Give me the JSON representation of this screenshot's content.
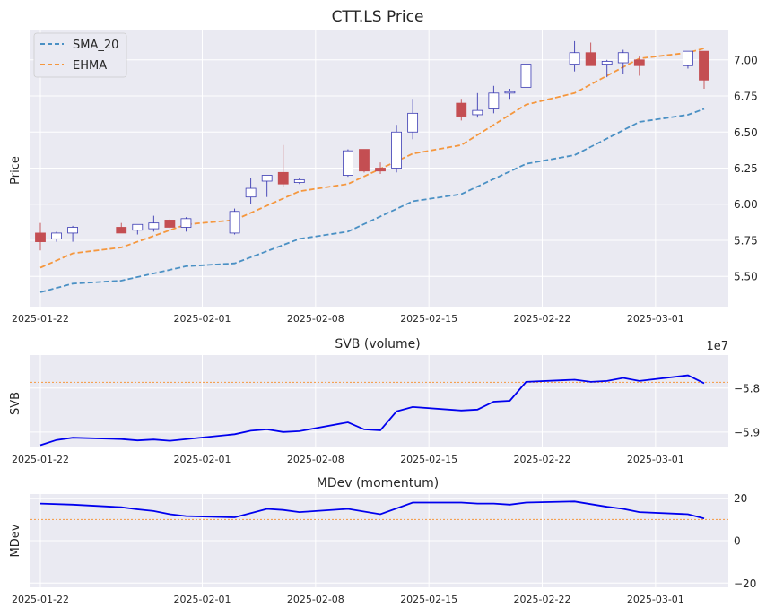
{
  "chart_data": [
    {
      "type": "candlestick",
      "title": "CTT.LS Price",
      "ylabel": "Price",
      "ylim": [
        5.29,
        7.21
      ],
      "yticks": [
        5.5,
        5.75,
        6.0,
        6.25,
        6.5,
        6.75,
        7.0
      ],
      "ytick_labels": [
        "5.50",
        "5.75",
        "6.00",
        "6.25",
        "6.50",
        "6.75",
        "7.00"
      ],
      "xticks": [
        "2025-01-22",
        "2025-02-01",
        "2025-02-08",
        "2025-02-15",
        "2025-02-22",
        "2025-03-01"
      ],
      "legend_position": "top-left",
      "candles": [
        {
          "date": "2025-01-22",
          "open": 5.8,
          "high": 5.87,
          "low": 5.68,
          "close": 5.74
        },
        {
          "date": "2025-01-23",
          "open": 5.76,
          "high": 5.81,
          "low": 5.74,
          "close": 5.8
        },
        {
          "date": "2025-01-24",
          "open": 5.8,
          "high": 5.85,
          "low": 5.74,
          "close": 5.84
        },
        {
          "date": "2025-01-27",
          "open": 5.84,
          "high": 5.87,
          "low": 5.8,
          "close": 5.8
        },
        {
          "date": "2025-01-28",
          "open": 5.82,
          "high": 5.86,
          "low": 5.79,
          "close": 5.86
        },
        {
          "date": "2025-01-29",
          "open": 5.83,
          "high": 5.92,
          "low": 5.81,
          "close": 5.87
        },
        {
          "date": "2025-01-30",
          "open": 5.89,
          "high": 5.9,
          "low": 5.82,
          "close": 5.84
        },
        {
          "date": "2025-01-31",
          "open": 5.84,
          "high": 5.91,
          "low": 5.81,
          "close": 5.9
        },
        {
          "date": "2025-02-03",
          "open": 5.8,
          "high": 5.97,
          "low": 5.79,
          "close": 5.95
        },
        {
          "date": "2025-02-04",
          "open": 6.05,
          "high": 6.18,
          "low": 6.0,
          "close": 6.11
        },
        {
          "date": "2025-02-05",
          "open": 6.16,
          "high": 6.2,
          "low": 6.05,
          "close": 6.2
        },
        {
          "date": "2025-02-06",
          "open": 6.22,
          "high": 6.41,
          "low": 6.12,
          "close": 6.14
        },
        {
          "date": "2025-02-07",
          "open": 6.15,
          "high": 6.18,
          "low": 6.14,
          "close": 6.17
        },
        {
          "date": "2025-02-10",
          "open": 6.2,
          "high": 6.38,
          "low": 6.19,
          "close": 6.37
        },
        {
          "date": "2025-02-11",
          "open": 6.38,
          "high": 6.38,
          "low": 6.22,
          "close": 6.23
        },
        {
          "date": "2025-02-12",
          "open": 6.25,
          "high": 6.29,
          "low": 6.21,
          "close": 6.23
        },
        {
          "date": "2025-02-13",
          "open": 6.25,
          "high": 6.55,
          "low": 6.22,
          "close": 6.5
        },
        {
          "date": "2025-02-14",
          "open": 6.5,
          "high": 6.73,
          "low": 6.45,
          "close": 6.63
        },
        {
          "date": "2025-02-17",
          "open": 6.7,
          "high": 6.73,
          "low": 6.58,
          "close": 6.61
        },
        {
          "date": "2025-02-18",
          "open": 6.62,
          "high": 6.77,
          "low": 6.6,
          "close": 6.65
        },
        {
          "date": "2025-02-19",
          "open": 6.66,
          "high": 6.82,
          "low": 6.63,
          "close": 6.77
        },
        {
          "date": "2025-02-20",
          "open": 6.77,
          "high": 6.8,
          "low": 6.73,
          "close": 6.78
        },
        {
          "date": "2025-02-21",
          "open": 6.81,
          "high": 6.97,
          "low": 6.81,
          "close": 6.97
        },
        {
          "date": "2025-02-24",
          "open": 6.97,
          "high": 7.13,
          "low": 6.92,
          "close": 7.05
        },
        {
          "date": "2025-02-25",
          "open": 7.05,
          "high": 7.12,
          "low": 6.96,
          "close": 6.96
        },
        {
          "date": "2025-02-26",
          "open": 6.97,
          "high": 7.0,
          "low": 6.88,
          "close": 6.99
        },
        {
          "date": "2025-02-27",
          "open": 6.98,
          "high": 7.07,
          "low": 6.9,
          "close": 7.05
        },
        {
          "date": "2025-02-28",
          "open": 7.0,
          "high": 7.03,
          "low": 6.89,
          "close": 6.96
        },
        {
          "date": "2025-03-03",
          "open": 6.96,
          "high": 7.06,
          "low": 6.94,
          "close": 7.06
        },
        {
          "date": "2025-03-04",
          "open": 7.06,
          "high": 7.06,
          "low": 6.8,
          "close": 6.86
        }
      ],
      "series": [
        {
          "name": "SMA_20",
          "color": "#4a90c4",
          "dash": "dashed",
          "points": [
            [
              "2025-01-22",
              5.39
            ],
            [
              "2025-01-24",
              5.45
            ],
            [
              "2025-01-27",
              5.47
            ],
            [
              "2025-01-31",
              5.57
            ],
            [
              "2025-02-03",
              5.59
            ],
            [
              "2025-02-07",
              5.76
            ],
            [
              "2025-02-10",
              5.81
            ],
            [
              "2025-02-14",
              6.02
            ],
            [
              "2025-02-17",
              6.07
            ],
            [
              "2025-02-21",
              6.28
            ],
            [
              "2025-02-24",
              6.34
            ],
            [
              "2025-02-28",
              6.57
            ],
            [
              "2025-03-03",
              6.62
            ],
            [
              "2025-03-04",
              6.66
            ]
          ]
        },
        {
          "name": "EHMA",
          "color": "#f5973e",
          "dash": "dashed",
          "points": [
            [
              "2025-01-22",
              5.56
            ],
            [
              "2025-01-24",
              5.66
            ],
            [
              "2025-01-27",
              5.7
            ],
            [
              "2025-01-31",
              5.86
            ],
            [
              "2025-02-03",
              5.89
            ],
            [
              "2025-02-07",
              6.09
            ],
            [
              "2025-02-10",
              6.14
            ],
            [
              "2025-02-14",
              6.35
            ],
            [
              "2025-02-17",
              6.41
            ],
            [
              "2025-02-21",
              6.69
            ],
            [
              "2025-02-24",
              6.77
            ],
            [
              "2025-02-28",
              7.01
            ],
            [
              "2025-03-03",
              7.05
            ],
            [
              "2025-03-04",
              7.08
            ]
          ]
        }
      ]
    },
    {
      "type": "line",
      "title": "SVB (volume)",
      "ylabel": "SVB",
      "scale_label": "1e7",
      "ylim": [
        -5.935,
        -5.725
      ],
      "yticks": [
        -5.9,
        -5.8
      ],
      "ytick_labels": [
        "−5.9",
        "−5.8"
      ],
      "xticks": [
        "2025-01-22",
        "2025-02-01",
        "2025-02-08",
        "2025-02-15",
        "2025-02-22",
        "2025-03-01"
      ],
      "reference_line": -5.787,
      "series": [
        {
          "name": "",
          "color": "#0000ee",
          "points": [
            [
              "2025-01-22",
              -5.93
            ],
            [
              "2025-01-23",
              -5.918
            ],
            [
              "2025-01-24",
              -5.913
            ],
            [
              "2025-01-27",
              -5.916
            ],
            [
              "2025-01-28",
              -5.919
            ],
            [
              "2025-01-29",
              -5.917
            ],
            [
              "2025-01-30",
              -5.92
            ],
            [
              "2025-02-03",
              -5.905
            ],
            [
              "2025-02-04",
              -5.897
            ],
            [
              "2025-02-05",
              -5.894
            ],
            [
              "2025-02-06",
              -5.9
            ],
            [
              "2025-02-07",
              -5.898
            ],
            [
              "2025-02-10",
              -5.878
            ],
            [
              "2025-02-11",
              -5.894
            ],
            [
              "2025-02-12",
              -5.896
            ],
            [
              "2025-02-13",
              -5.853
            ],
            [
              "2025-02-14",
              -5.843
            ],
            [
              "2025-02-17",
              -5.851
            ],
            [
              "2025-02-18",
              -5.849
            ],
            [
              "2025-02-19",
              -5.831
            ],
            [
              "2025-02-20",
              -5.829
            ],
            [
              "2025-02-21",
              -5.786
            ],
            [
              "2025-02-24",
              -5.781
            ],
            [
              "2025-02-25",
              -5.786
            ],
            [
              "2025-02-26",
              -5.784
            ],
            [
              "2025-02-27",
              -5.777
            ],
            [
              "2025-02-28",
              -5.784
            ],
            [
              "2025-03-03",
              -5.771
            ],
            [
              "2025-03-04",
              -5.789
            ]
          ]
        }
      ]
    },
    {
      "type": "line",
      "title": "MDev (momentum)",
      "ylabel": "MDev",
      "ylim": [
        -22,
        22
      ],
      "yticks": [
        -20,
        0,
        20
      ],
      "ytick_labels": [
        "−20",
        "0",
        "20"
      ],
      "xticks": [
        "2025-01-22",
        "2025-02-01",
        "2025-02-08",
        "2025-02-15",
        "2025-02-22",
        "2025-03-01"
      ],
      "reference_line": 10,
      "series": [
        {
          "name": "",
          "color": "#0000ee",
          "points": [
            [
              "2025-01-22",
              17.5
            ],
            [
              "2025-01-24",
              17.0
            ],
            [
              "2025-01-27",
              15.8
            ],
            [
              "2025-01-28",
              14.8
            ],
            [
              "2025-01-29",
              14.0
            ],
            [
              "2025-01-30",
              12.5
            ],
            [
              "2025-01-31",
              11.6
            ],
            [
              "2025-02-03",
              11.0
            ],
            [
              "2025-02-05",
              15.0
            ],
            [
              "2025-02-06",
              14.5
            ],
            [
              "2025-02-07",
              13.5
            ],
            [
              "2025-02-10",
              15.0
            ],
            [
              "2025-02-12",
              12.5
            ],
            [
              "2025-02-14",
              18.0
            ],
            [
              "2025-02-17",
              18.0
            ],
            [
              "2025-02-18",
              17.5
            ],
            [
              "2025-02-19",
              17.5
            ],
            [
              "2025-02-20",
              17.0
            ],
            [
              "2025-02-21",
              18.0
            ],
            [
              "2025-02-24",
              18.5
            ],
            [
              "2025-02-26",
              16.0
            ],
            [
              "2025-02-27",
              15.0
            ],
            [
              "2025-02-28",
              13.5
            ],
            [
              "2025-03-03",
              12.5
            ],
            [
              "2025-03-04",
              10.5
            ]
          ]
        }
      ]
    }
  ],
  "colors": {
    "plot_background": "#eaeaf2",
    "grid": "#ffffff",
    "candle_up_fill": "#ffffff",
    "candle_up_edge": "#3b3bb3",
    "candle_down_fill": "#c44e52",
    "candle_down_edge": "#c44e52",
    "reference_line": "#f5973e"
  }
}
